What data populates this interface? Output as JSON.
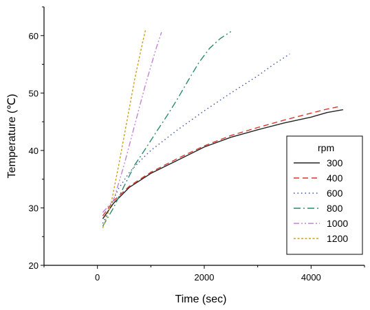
{
  "chart_data": {
    "type": "line",
    "title": "",
    "xlabel": "Time (sec)",
    "ylabel": "Temperature (℃)",
    "xlim": [
      -1000,
      5000
    ],
    "ylim": [
      20,
      65
    ],
    "x_ticks": [
      0,
      2000,
      4000
    ],
    "y_ticks": [
      20,
      30,
      40,
      50,
      60
    ],
    "grid": false,
    "legend": {
      "title": "rpm",
      "placement": "right"
    },
    "series": [
      {
        "name": "300",
        "color": "#222222",
        "dash": "solid",
        "x": [
          100,
          300,
          600,
          1000,
          1500,
          2000,
          2500,
          3000,
          3500,
          4000,
          4300,
          4600
        ],
        "y": [
          28.1,
          30.8,
          33.6,
          36.0,
          38.3,
          40.6,
          42.3,
          43.6,
          44.8,
          45.8,
          46.6,
          47.1
        ]
      },
      {
        "name": "400",
        "color": "#d9352c",
        "dash": "8,5",
        "x": [
          100,
          300,
          600,
          1000,
          1500,
          2000,
          2500,
          3000,
          3500,
          4000,
          4300,
          4500
        ],
        "y": [
          28.6,
          31.2,
          33.8,
          36.2,
          38.6,
          40.8,
          42.6,
          44.0,
          45.3,
          46.5,
          47.2,
          47.6
        ]
      },
      {
        "name": "600",
        "color": "#3a4da3",
        "dash": "1.5,4",
        "x": [
          100,
          200,
          300,
          400,
          600,
          800,
          1000,
          1500,
          2000,
          2500,
          3000,
          3300,
          3600
        ],
        "y": [
          27.3,
          29.3,
          31.5,
          33.4,
          36.2,
          38.2,
          40.0,
          43.6,
          46.9,
          50.0,
          53.0,
          55.0,
          56.8
        ]
      },
      {
        "name": "800",
        "color": "#2a8a6a",
        "dash": "10,4,2,4",
        "x": [
          100,
          300,
          500,
          700,
          900,
          1100,
          1300,
          1500,
          1700,
          1900,
          2100,
          2300,
          2500
        ],
        "y": [
          26.8,
          30.0,
          33.8,
          37.5,
          40.3,
          43.2,
          46.0,
          49.0,
          52.2,
          55.3,
          57.8,
          59.5,
          60.7
        ]
      },
      {
        "name": "1000",
        "color": "#c183d6",
        "dash": "8,3,2,3,2,3",
        "x": [
          100,
          300,
          500,
          700,
          900,
          1100,
          1200
        ],
        "y": [
          29.2,
          31.3,
          37.5,
          44.5,
          51.5,
          57.8,
          60.6
        ]
      },
      {
        "name": "1200",
        "color": "#c9a21a",
        "dash": "3,2.5",
        "x": [
          100,
          250,
          400,
          550,
          700,
          850,
          900
        ],
        "y": [
          26.5,
          30.5,
          37.5,
          45.0,
          52.5,
          59.0,
          61.0
        ]
      }
    ]
  }
}
